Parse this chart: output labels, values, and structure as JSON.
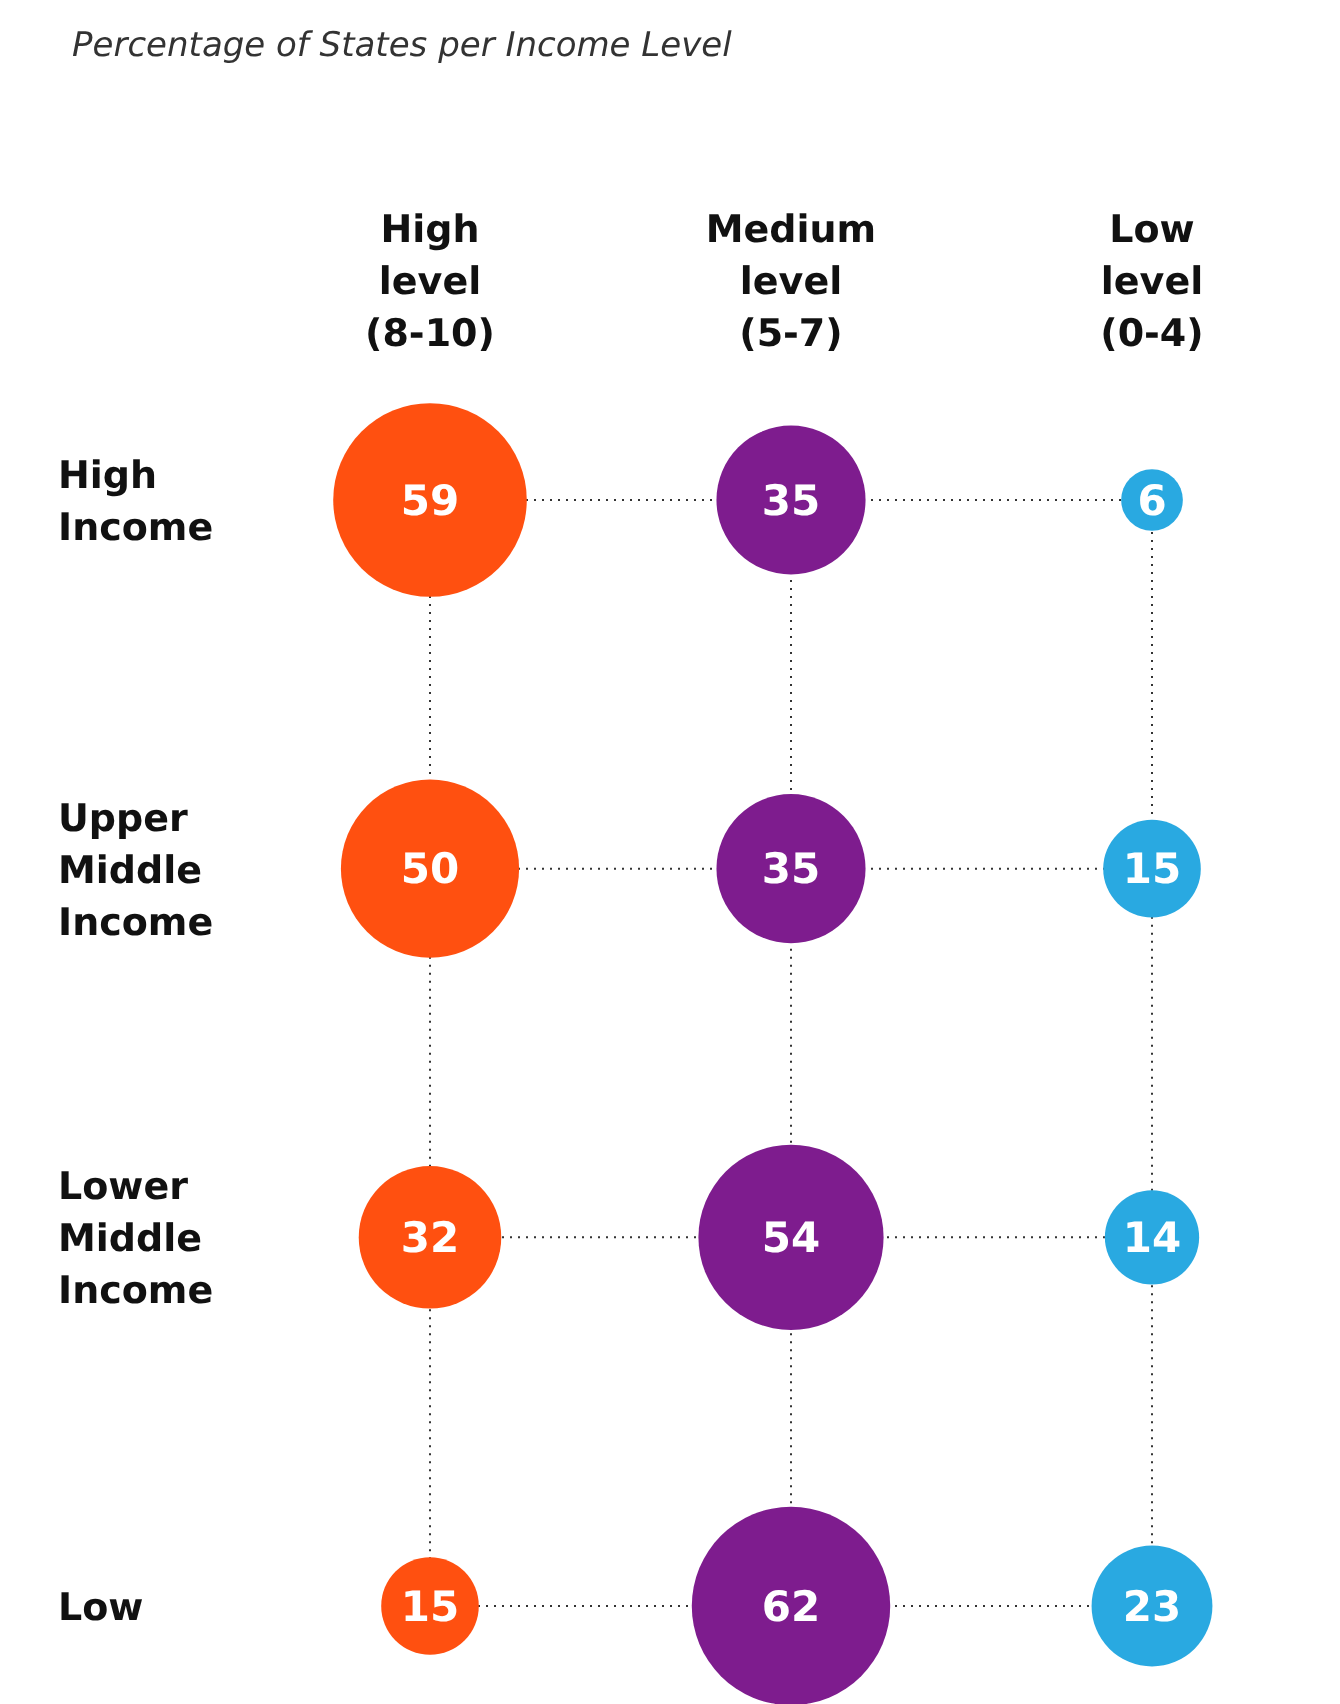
{
  "chart_data": {
    "type": "heatmap",
    "title": "Percentage of States per Income Level",
    "categories": [
      "High\nlevel\n(8-10)",
      "Medium\nlevel\n(5-7)",
      "Low\nlevel\n(0-4)"
    ],
    "y_categories": [
      "High\nIncome",
      "Upper\nMiddle\nIncome",
      "Lower\nMiddle\nIncome",
      "Low"
    ],
    "cells": [
      [
        59,
        35,
        6
      ],
      [
        50,
        35,
        15
      ],
      [
        32,
        54,
        14
      ],
      [
        15,
        62,
        23
      ]
    ],
    "colors": [
      "#ff5010",
      "#7e1c8e",
      "#29a9e1"
    ],
    "data_labels": true,
    "grid": true
  }
}
